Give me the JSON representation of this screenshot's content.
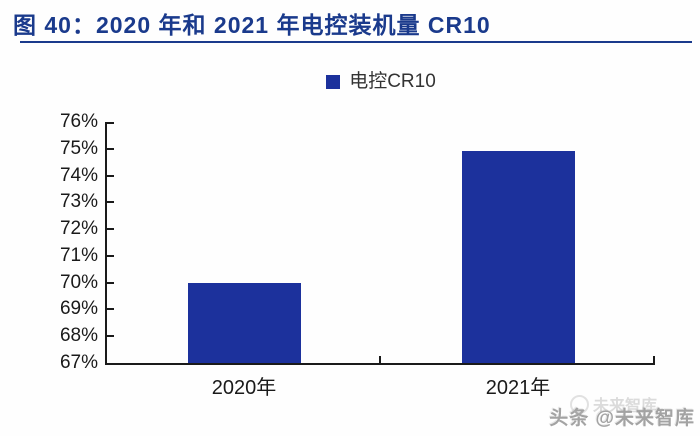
{
  "header": {
    "title": "图 40：2020 年和 2021 年电控装机量 CR10"
  },
  "legend": {
    "label": "电控CR10"
  },
  "watermark": {
    "text": "头条 @未来智库",
    "ghost": "未来智库"
  },
  "colors": {
    "bar": "#1c319c",
    "title": "#1a3a8c",
    "axis": "#1a1a1a",
    "watermark": "#a3a3a3"
  },
  "chart_data": {
    "type": "bar",
    "title": "图 40：2020 年和 2021 年电控装机量 CR10",
    "series_name": "电控CR10",
    "categories": [
      "2020年",
      "2021年"
    ],
    "values": [
      70,
      75
    ],
    "unit": "%",
    "xlabel": "",
    "ylabel": "",
    "ylim": [
      67,
      76
    ],
    "ytick_step": 1,
    "ytick_labels": [
      "67%",
      "68%",
      "69%",
      "70%",
      "71%",
      "72%",
      "73%",
      "74%",
      "75%",
      "76%"
    ],
    "grid": false,
    "legend_position": "top-center",
    "bar_color": "#1c319c"
  }
}
